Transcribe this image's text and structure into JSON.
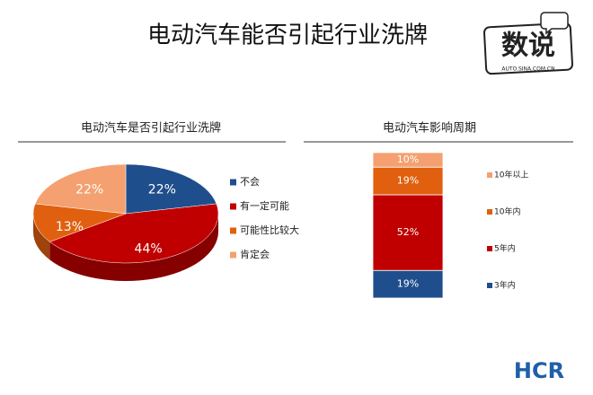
{
  "title": "电动汽车能否引起行业洗牌",
  "logo": {
    "text": "数说",
    "sub": "AUTO.SINA.COM.CN"
  },
  "brand": "HCR",
  "chart_data": [
    {
      "type": "pie",
      "title": "电动汽车是否引起行业洗牌",
      "categories": [
        "不会",
        "有一定可能",
        "可能性比较大",
        "肯定会"
      ],
      "values": [
        22,
        44,
        13,
        22
      ],
      "value_labels": [
        "22%",
        "44%",
        "13%",
        "22%"
      ],
      "colors": [
        "#1f4e8c",
        "#c00000",
        "#e0600f",
        "#f4a070"
      ],
      "legend": "right"
    },
    {
      "type": "stacked-bar",
      "title": "电动汽车影响周期",
      "series": [
        {
          "name": "3年内",
          "color": "#1f4e8c",
          "values": [
            19
          ],
          "value_labels": [
            "19%"
          ]
        },
        {
          "name": "5年内",
          "color": "#c00000",
          "values": [
            52
          ],
          "value_labels": [
            "52%"
          ]
        },
        {
          "name": "10年内",
          "color": "#e0600f",
          "values": [
            19
          ],
          "value_labels": [
            "19%"
          ]
        },
        {
          "name": "10年以上",
          "color": "#f4a070",
          "values": [
            10
          ],
          "value_labels": [
            "10%"
          ]
        }
      ],
      "legend": "right"
    }
  ]
}
